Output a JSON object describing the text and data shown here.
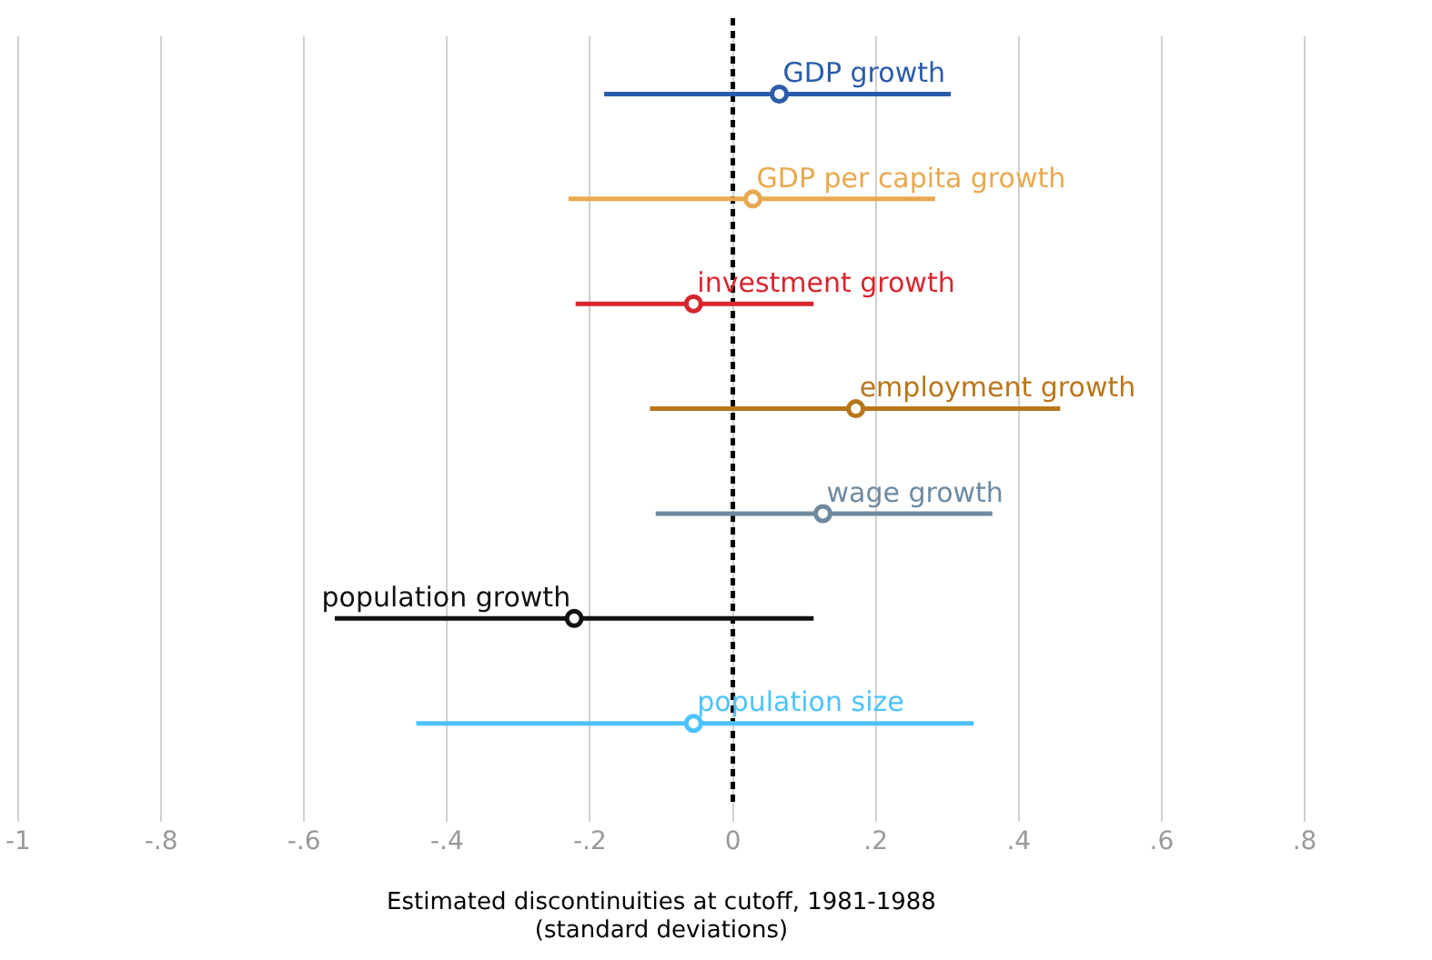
{
  "chart_data": {
    "type": "scatter",
    "orientation": "horizontal",
    "categories": [
      null,
      null,
      null,
      null,
      null,
      null,
      null
    ],
    "series": [
      {
        "name": "GDP growth",
        "color": "#2a5caa",
        "values": [
          0.065,
          null,
          null,
          null,
          null,
          null,
          null
        ],
        "errors": [
          [
            -0.18,
            0.305
          ],
          null,
          null,
          null,
          null,
          null,
          null
        ]
      },
      {
        "name": "GDP per capita growth",
        "color": "#e8a94f",
        "values": [
          null,
          0.028,
          null,
          null,
          null,
          null,
          null
        ],
        "errors": [
          null,
          [
            -0.23,
            0.283
          ],
          null,
          null,
          null,
          null,
          null
        ]
      },
      {
        "name": "investment growth",
        "color": "#d7262e",
        "values": [
          null,
          null,
          -0.055,
          null,
          null,
          null,
          null
        ],
        "errors": [
          null,
          null,
          [
            -0.22,
            0.113
          ],
          null,
          null,
          null,
          null
        ]
      },
      {
        "name": "employment growth",
        "color": "#b8761a",
        "values": [
          null,
          null,
          null,
          0.172,
          null,
          null,
          null
        ],
        "errors": [
          null,
          null,
          null,
          [
            -0.116,
            0.458
          ],
          null,
          null,
          null
        ]
      },
      {
        "name": "wage growth",
        "color": "#6e8aa0",
        "values": [
          null,
          null,
          null,
          null,
          0.126,
          null,
          null
        ],
        "errors": [
          null,
          null,
          null,
          null,
          [
            -0.108,
            0.363
          ],
          null,
          null
        ]
      },
      {
        "name": "population growth",
        "color": "#111111",
        "values": [
          null,
          null,
          null,
          null,
          null,
          -0.222,
          null
        ],
        "errors": [
          null,
          null,
          null,
          null,
          null,
          [
            -0.557,
            0.113
          ],
          null
        ]
      },
      {
        "name": "population size",
        "color": "#4cc3ff",
        "values": [
          null,
          null,
          null,
          null,
          null,
          null,
          -0.055
        ],
        "errors": [
          null,
          null,
          null,
          null,
          null,
          null,
          [
            -0.443,
            0.337
          ]
        ]
      }
    ],
    "xlabel": "Estimated discontinuities at cutoff, 1981-1988\n(standard deviations)",
    "xlim": [
      -1,
      0.8
    ],
    "xticks": [
      {
        "value": -1,
        "label": "-1"
      },
      {
        "value": -0.8,
        "label": "-.8"
      },
      {
        "value": -0.6,
        "label": "-.6"
      },
      {
        "value": -0.4,
        "label": "-.4"
      },
      {
        "value": -0.2,
        "label": "-.2"
      },
      0,
      {
        "value": 0.2,
        "label": ".2"
      },
      {
        "value": 0.4,
        "label": ".4"
      },
      {
        "value": 0.6,
        "label": ".6"
      },
      {
        "value": 0.8,
        "label": ".8"
      }
    ],
    "ref_lines": [
      {
        "axis": "x",
        "value": 0,
        "color": "#000000",
        "line_style": "dashed"
      }
    ],
    "grid": "x",
    "tick_labels": "x",
    "marker": "circle",
    "legend": false
  }
}
